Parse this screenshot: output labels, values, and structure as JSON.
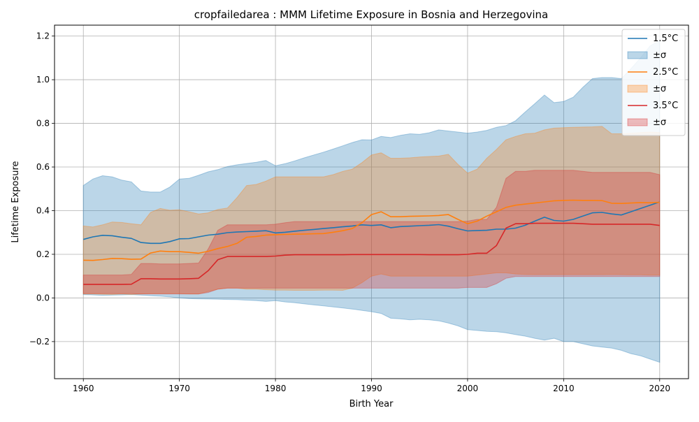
{
  "chart_data": {
    "type": "line",
    "title": "cropfailedarea : MMM Lifetime Exposure in Bosnia and Herzegovina",
    "xlabel": "Birth Year",
    "ylabel": "Lifetime Exposure",
    "xlim": [
      1957,
      2023
    ],
    "ylim": [
      -0.37,
      1.25
    ],
    "xticks": [
      1960,
      1970,
      1980,
      1990,
      2000,
      2010,
      2020
    ],
    "yticks": [
      -0.2,
      0.0,
      0.2,
      0.4,
      0.6,
      0.8,
      1.0,
      1.2
    ],
    "ytick_labels": [
      "−0.2",
      "0.0",
      "0.2",
      "0.4",
      "0.6",
      "0.8",
      "1.0",
      "1.2"
    ],
    "grid": true,
    "legend_position": "top-right",
    "legend": [
      "1.5°C",
      "±σ",
      "2.5°C",
      "±σ",
      "3.5°C",
      "±σ"
    ],
    "x": [
      1960,
      1961,
      1962,
      1963,
      1964,
      1965,
      1966,
      1967,
      1968,
      1969,
      1970,
      1971,
      1972,
      1973,
      1974,
      1975,
      1976,
      1977,
      1978,
      1979,
      1980,
      1981,
      1982,
      1983,
      1984,
      1985,
      1986,
      1987,
      1988,
      1989,
      1990,
      1991,
      1992,
      1993,
      1994,
      1995,
      1996,
      1997,
      1998,
      1999,
      2000,
      2001,
      2002,
      2003,
      2004,
      2005,
      2006,
      2007,
      2008,
      2009,
      2010,
      2011,
      2012,
      2013,
      2014,
      2015,
      2016,
      2017,
      2018,
      2019,
      2020
    ],
    "series": [
      {
        "name": "1.5°C",
        "color": "#1f77b4",
        "fill": "#1f77b4",
        "mean": [
          0.268,
          0.28,
          0.287,
          0.285,
          0.278,
          0.273,
          0.254,
          0.25,
          0.25,
          0.258,
          0.271,
          0.272,
          0.28,
          0.288,
          0.292,
          0.299,
          0.302,
          0.304,
          0.306,
          0.308,
          0.298,
          0.301,
          0.306,
          0.31,
          0.314,
          0.318,
          0.322,
          0.326,
          0.33,
          0.335,
          0.332,
          0.335,
          0.322,
          0.327,
          0.329,
          0.331,
          0.333,
          0.336,
          0.329,
          0.317,
          0.307,
          0.309,
          0.31,
          0.315,
          0.315,
          0.32,
          0.333,
          0.352,
          0.37,
          0.355,
          0.352,
          0.36,
          0.375,
          0.39,
          0.392,
          0.385,
          0.38,
          0.395,
          0.41,
          0.425,
          0.44
        ],
        "lower": [
          0.015,
          0.014,
          0.012,
          0.013,
          0.014,
          0.015,
          0.013,
          0.01,
          0.008,
          0.005,
          0.0,
          -0.003,
          -0.004,
          -0.005,
          -0.006,
          -0.007,
          -0.008,
          -0.01,
          -0.012,
          -0.016,
          -0.012,
          -0.018,
          -0.022,
          -0.027,
          -0.032,
          -0.036,
          -0.041,
          -0.046,
          -0.051,
          -0.057,
          -0.063,
          -0.071,
          -0.093,
          -0.096,
          -0.1,
          -0.098,
          -0.1,
          -0.105,
          -0.115,
          -0.128,
          -0.145,
          -0.149,
          -0.153,
          -0.155,
          -0.16,
          -0.168,
          -0.175,
          -0.185,
          -0.193,
          -0.185,
          -0.2,
          -0.2,
          -0.21,
          -0.22,
          -0.225,
          -0.23,
          -0.24,
          -0.255,
          -0.265,
          -0.28,
          -0.295
        ],
        "upper": [
          0.515,
          0.545,
          0.56,
          0.555,
          0.54,
          0.532,
          0.49,
          0.485,
          0.485,
          0.508,
          0.545,
          0.548,
          0.562,
          0.578,
          0.588,
          0.602,
          0.61,
          0.616,
          0.622,
          0.63,
          0.606,
          0.615,
          0.628,
          0.642,
          0.655,
          0.668,
          0.682,
          0.697,
          0.712,
          0.725,
          0.724,
          0.74,
          0.735,
          0.745,
          0.752,
          0.75,
          0.757,
          0.77,
          0.765,
          0.76,
          0.755,
          0.76,
          0.768,
          0.782,
          0.79,
          0.812,
          0.852,
          0.89,
          0.93,
          0.895,
          0.9,
          0.92,
          0.965,
          1.005,
          1.01,
          1.01,
          1.005,
          1.05,
          1.1,
          1.155,
          1.18
        ]
      },
      {
        "name": "2.5°C",
        "color": "#ff7f0e",
        "fill": "#ff7f0e",
        "mean": [
          0.173,
          0.172,
          0.176,
          0.181,
          0.18,
          0.177,
          0.178,
          0.206,
          0.215,
          0.212,
          0.212,
          0.209,
          0.205,
          0.214,
          0.226,
          0.236,
          0.25,
          0.278,
          0.282,
          0.288,
          0.29,
          0.291,
          0.292,
          0.293,
          0.294,
          0.295,
          0.301,
          0.308,
          0.318,
          0.345,
          0.382,
          0.395,
          0.372,
          0.372,
          0.374,
          0.375,
          0.376,
          0.378,
          0.382,
          0.36,
          0.34,
          0.352,
          0.375,
          0.395,
          0.415,
          0.425,
          0.43,
          0.435,
          0.44,
          0.445,
          0.447,
          0.448,
          0.447,
          0.447,
          0.446,
          0.434,
          0.433,
          0.435,
          0.437,
          0.436,
          0.438
        ],
        "lower": [
          0.018,
          0.018,
          0.017,
          0.016,
          0.018,
          0.016,
          0.018,
          0.02,
          0.02,
          0.02,
          0.02,
          0.018,
          0.018,
          0.03,
          0.04,
          0.045,
          0.045,
          0.04,
          0.04,
          0.038,
          0.036,
          0.036,
          0.035,
          0.035,
          0.035,
          0.036,
          0.036,
          0.035,
          0.045,
          0.07,
          0.1,
          0.11,
          0.1,
          0.1,
          0.1,
          0.1,
          0.1,
          0.1,
          0.1,
          0.1,
          0.1,
          0.105,
          0.11,
          0.115,
          0.115,
          0.11,
          0.108,
          0.107,
          0.107,
          0.107,
          0.107,
          0.107,
          0.107,
          0.107,
          0.107,
          0.108,
          0.107,
          0.106,
          0.106,
          0.105,
          0.105
        ],
        "upper": [
          0.33,
          0.325,
          0.335,
          0.348,
          0.346,
          0.34,
          0.335,
          0.392,
          0.41,
          0.402,
          0.404,
          0.395,
          0.385,
          0.39,
          0.405,
          0.412,
          0.46,
          0.515,
          0.52,
          0.535,
          0.555,
          0.555,
          0.555,
          0.555,
          0.555,
          0.555,
          0.565,
          0.58,
          0.59,
          0.62,
          0.655,
          0.665,
          0.64,
          0.64,
          0.642,
          0.646,
          0.648,
          0.65,
          0.658,
          0.612,
          0.572,
          0.59,
          0.64,
          0.68,
          0.725,
          0.74,
          0.752,
          0.755,
          0.77,
          0.778,
          0.78,
          0.782,
          0.783,
          0.784,
          0.786,
          0.752,
          0.752,
          0.755,
          0.758,
          0.76,
          0.758
        ]
      },
      {
        "name": "3.5°C",
        "color": "#d62728",
        "fill": "#d62728",
        "mean": [
          0.062,
          0.062,
          0.062,
          0.062,
          0.062,
          0.063,
          0.088,
          0.088,
          0.087,
          0.087,
          0.087,
          0.088,
          0.09,
          0.125,
          0.175,
          0.19,
          0.19,
          0.19,
          0.19,
          0.19,
          0.192,
          0.196,
          0.198,
          0.198,
          0.198,
          0.198,
          0.198,
          0.198,
          0.199,
          0.199,
          0.199,
          0.199,
          0.199,
          0.199,
          0.199,
          0.199,
          0.198,
          0.198,
          0.198,
          0.198,
          0.2,
          0.205,
          0.205,
          0.24,
          0.32,
          0.34,
          0.34,
          0.342,
          0.342,
          0.342,
          0.342,
          0.342,
          0.34,
          0.338,
          0.338,
          0.338,
          0.338,
          0.338,
          0.338,
          0.338,
          0.332
        ],
        "lower": [
          0.02,
          0.02,
          0.02,
          0.02,
          0.02,
          0.02,
          0.018,
          0.018,
          0.018,
          0.018,
          0.018,
          0.018,
          0.018,
          0.025,
          0.04,
          0.045,
          0.045,
          0.045,
          0.045,
          0.045,
          0.045,
          0.045,
          0.045,
          0.045,
          0.045,
          0.045,
          0.045,
          0.045,
          0.045,
          0.045,
          0.045,
          0.045,
          0.045,
          0.045,
          0.045,
          0.045,
          0.045,
          0.045,
          0.045,
          0.045,
          0.048,
          0.048,
          0.048,
          0.065,
          0.09,
          0.098,
          0.098,
          0.098,
          0.098,
          0.098,
          0.098,
          0.098,
          0.098,
          0.098,
          0.098,
          0.098,
          0.098,
          0.098,
          0.098,
          0.098,
          0.098
        ],
        "upper": [
          0.105,
          0.105,
          0.105,
          0.105,
          0.105,
          0.108,
          0.158,
          0.158,
          0.156,
          0.156,
          0.156,
          0.158,
          0.16,
          0.225,
          0.31,
          0.335,
          0.335,
          0.335,
          0.335,
          0.335,
          0.338,
          0.345,
          0.35,
          0.35,
          0.35,
          0.35,
          0.35,
          0.35,
          0.35,
          0.35,
          0.35,
          0.35,
          0.35,
          0.35,
          0.35,
          0.35,
          0.35,
          0.35,
          0.35,
          0.35,
          0.352,
          0.36,
          0.36,
          0.415,
          0.548,
          0.58,
          0.58,
          0.585,
          0.585,
          0.585,
          0.585,
          0.585,
          0.58,
          0.575,
          0.575,
          0.575,
          0.575,
          0.575,
          0.575,
          0.575,
          0.565
        ]
      }
    ]
  }
}
